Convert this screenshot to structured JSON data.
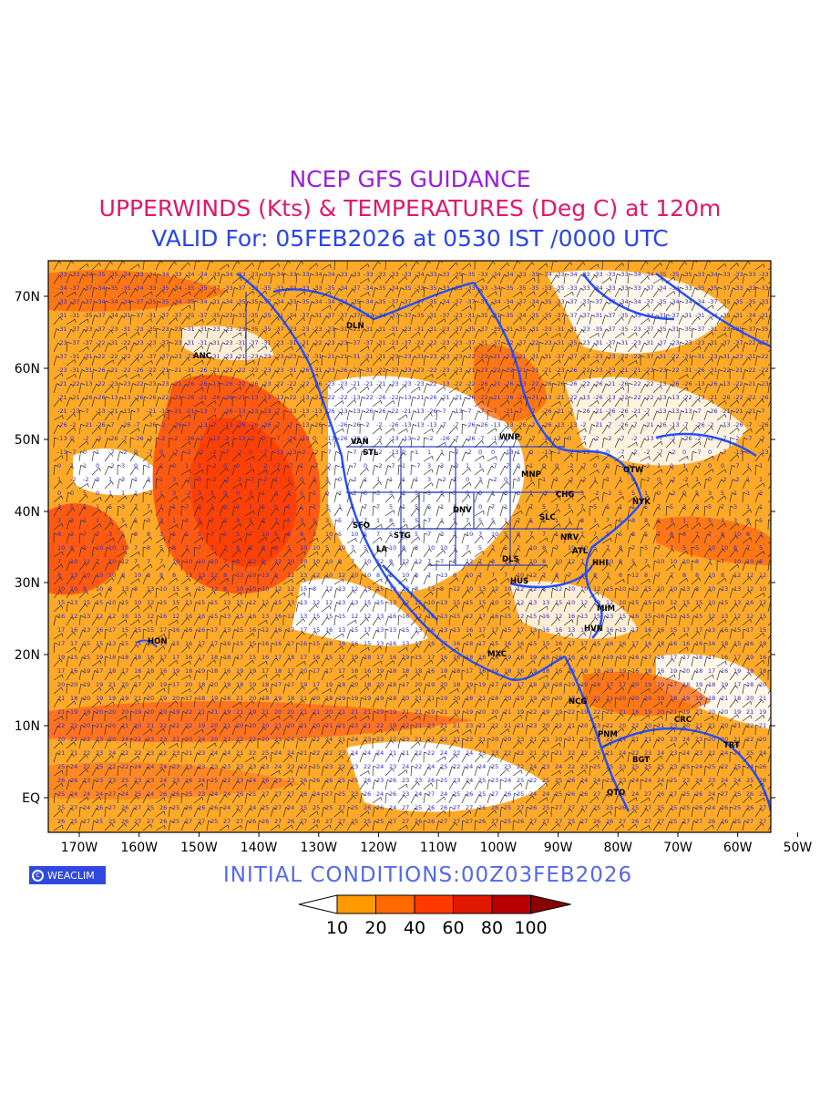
{
  "header": {
    "line1": "NCEP GFS GUIDANCE",
    "line2": "UPPERWINDS (Kts) & TEMPERATURES (Deg C) at 120m",
    "line3": "VALID For: 05FEB2026 at 0530 IST /0000 UTC"
  },
  "footer": {
    "initial": "INITIAL CONDITIONS:00Z03FEB2026",
    "logo_text": "WEACLIM"
  },
  "map": {
    "lat_labels": [
      "70N",
      "60N",
      "50N",
      "40N",
      "30N",
      "20N",
      "10N",
      "EQ"
    ],
    "lon_labels": [
      "170W",
      "160W",
      "150W",
      "140W",
      "130W",
      "120W",
      "110W",
      "100W",
      "90W",
      "80W",
      "70W",
      "60W",
      "50W"
    ],
    "stations": [
      "ANC",
      "DLN",
      "VAN",
      "STL",
      "WNP",
      "MNP",
      "OTW",
      "CHG",
      "NYK",
      "DNV",
      "SLC",
      "SFO",
      "STG",
      "LA",
      "NRV",
      "ATL",
      "DLS",
      "HUS",
      "HHI",
      "MIM",
      "HVN",
      "MXC",
      "NCG",
      "PNM",
      "CRC",
      "BGT",
      "TRT",
      "QTO",
      "HON"
    ],
    "temperature_samples": [
      "-33",
      "-34",
      "-35",
      "-37",
      "-31",
      "-23",
      "-22",
      "-21",
      "-26",
      "-13",
      "-7",
      "-2",
      "0",
      "1",
      "3",
      "5",
      "7",
      "8",
      "10",
      "12",
      "13",
      "15",
      "16",
      "17",
      "18",
      "19",
      "20",
      "21",
      "22",
      "23",
      "24",
      "25",
      "26",
      "27"
    ]
  },
  "legend": {
    "labels": [
      "10",
      "20",
      "40",
      "60",
      "80",
      "100"
    ],
    "colors": [
      "#ffffff",
      "#ff9a00",
      "#ff6a00",
      "#ff3800",
      "#e01800",
      "#b80000",
      "#8a0000"
    ]
  },
  "colors": {
    "coast": "#2850ff",
    "border": "#3040c0",
    "barb": "#303030"
  }
}
